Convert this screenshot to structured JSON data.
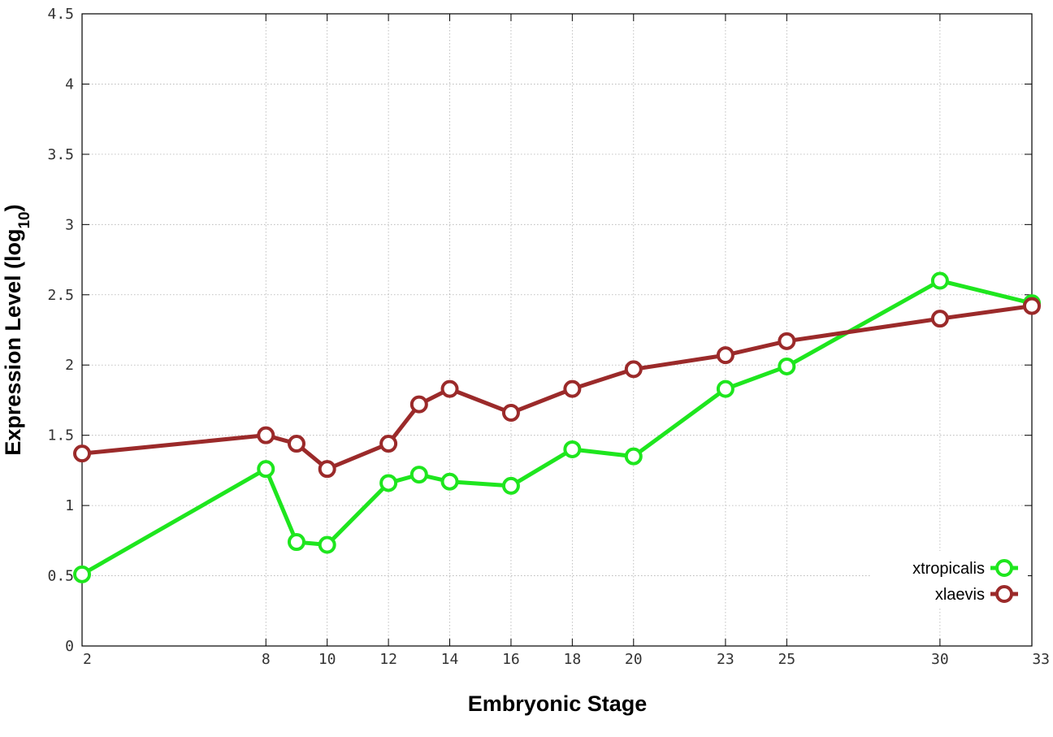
{
  "chart_data": {
    "type": "line",
    "xlabel": "Embryonic Stage",
    "ylabel_main": "Expression Level (log",
    "ylabel_sub": "10",
    "ylabel_close": ")",
    "x": [
      2,
      8,
      9,
      10,
      12,
      13,
      14,
      16,
      18,
      20,
      23,
      25,
      30,
      33
    ],
    "xticks": [
      2,
      8,
      10,
      12,
      14,
      16,
      18,
      20,
      23,
      25,
      30,
      33
    ],
    "xtick_labels": [
      "2",
      "8",
      "10",
      "12",
      "14",
      "16",
      "18",
      "20",
      "23",
      "25",
      "30",
      "33"
    ],
    "xlim": [
      2,
      33
    ],
    "yticks": [
      0,
      0.5,
      1,
      1.5,
      2,
      2.5,
      3,
      3.5,
      4,
      4.5
    ],
    "ytick_labels": [
      "0",
      "0.5",
      "1",
      "1.5",
      "2",
      "2.5",
      "3",
      "3.5",
      "4",
      "4.5"
    ],
    "ylim": [
      0,
      4.5
    ],
    "grid": true,
    "legend_position": "bottom-right",
    "series": [
      {
        "name": "xtropicalis",
        "color": "#1ee61e",
        "values": [
          0.51,
          1.26,
          0.74,
          0.72,
          1.16,
          1.22,
          1.17,
          1.14,
          1.4,
          1.35,
          1.83,
          1.99,
          2.6,
          2.44
        ]
      },
      {
        "name": "xlaevis",
        "color": "#9b2a2a",
        "values": [
          1.37,
          1.5,
          1.44,
          1.26,
          1.44,
          1.72,
          1.83,
          1.66,
          1.83,
          1.97,
          2.07,
          2.17,
          2.33,
          2.42
        ]
      }
    ]
  }
}
